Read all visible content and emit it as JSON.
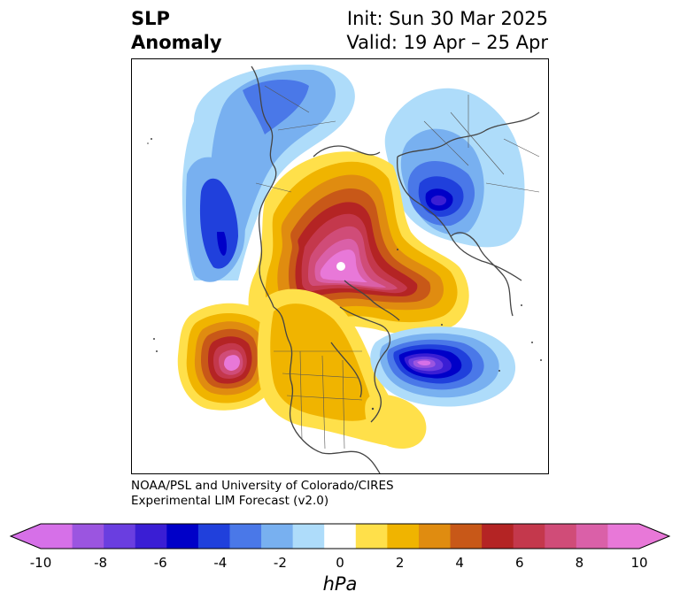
{
  "title": {
    "left_line1": "SLP",
    "left_line2": "Anomaly",
    "right_line1": "Init: Sun 30 Mar 2025",
    "right_line2": "Valid: 19 Apr – 25 Apr"
  },
  "credit": {
    "line1": "NOAA/PSL and University of Colorado/CIRES",
    "line2": "Experimental LIM Forecast (v2.0)"
  },
  "map": {
    "projection": "north-polar-stereographic",
    "field": "sea-level pressure anomaly",
    "features": [
      {
        "name": "arctic-high",
        "sign": "positive",
        "peak_hpa": 10
      },
      {
        "name": "north-pacific-high",
        "sign": "positive",
        "peak_hpa": 10
      },
      {
        "name": "north-atlantic-low",
        "sign": "negative",
        "peak_hpa": -10
      },
      {
        "name": "siberia-low",
        "sign": "negative",
        "peak_hpa": -6
      },
      {
        "name": "central-asia-low",
        "sign": "negative",
        "peak_hpa": -6
      }
    ]
  },
  "colorbar": {
    "unit": "hPa",
    "ticks": [
      "-10",
      "-8",
      "-6",
      "-4",
      "-2",
      "0",
      "2",
      "4",
      "6",
      "8",
      "10"
    ],
    "colors": [
      "#d670e8",
      "#9b55e0",
      "#6a3ee0",
      "#3a1ed4",
      "#0000c8",
      "#2040dc",
      "#4a78e8",
      "#78b0f0",
      "#aedcfa",
      "#ffffff",
      "#ffe04a",
      "#f0b400",
      "#e08c10",
      "#c85818",
      "#b42424",
      "#c4384c",
      "#d04c78",
      "#da60a8",
      "#e878d8"
    ],
    "extend_low_color": "#d670e8",
    "extend_high_color": "#e878d8"
  }
}
